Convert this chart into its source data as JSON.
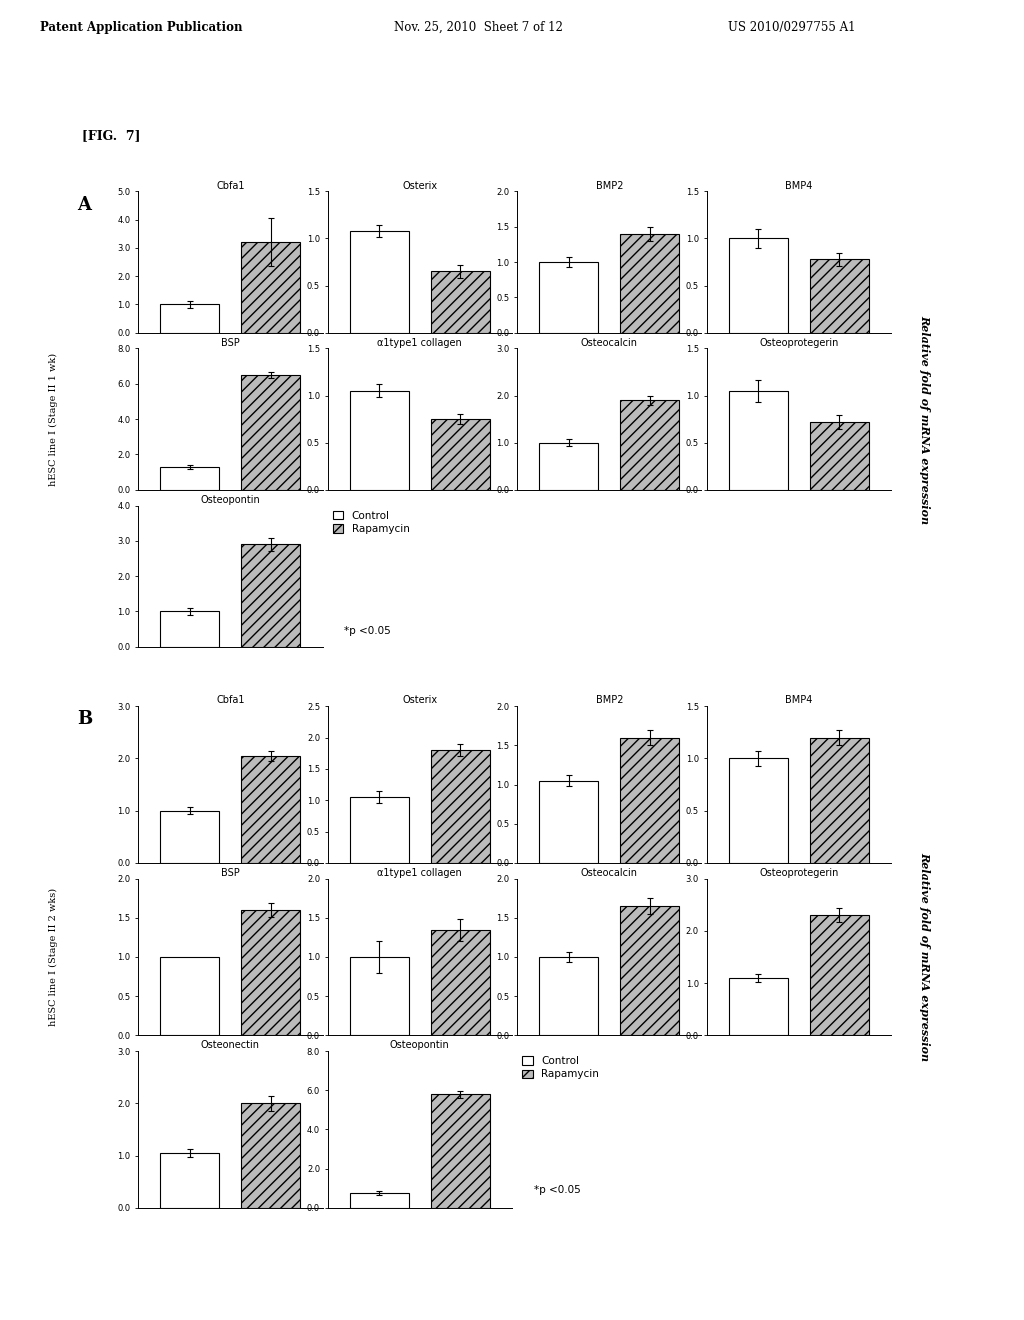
{
  "header_left": "Patent Application Publication",
  "header_mid": "Nov. 25, 2010  Sheet 7 of 12",
  "header_right": "US 2010/0297755 A1",
  "fig_label": "[FIG.  7]",
  "ylabel_A": "hESC line I (Stage II 1 wk)",
  "ylabel_B": "hESC line I (Stage II 2 wks)",
  "right_label": "Relative fold of mRNA expression",
  "legend_control": "Control",
  "legend_rapamycin": "Rapamycin",
  "legend_pval": "*p <0.05",
  "panel_A": {
    "row1": [
      {
        "title": "Cbfa1",
        "ylim": [
          0,
          5.0
        ],
        "yticks": [
          0.0,
          1.0,
          2.0,
          3.0,
          4.0,
          5.0
        ],
        "ctrl": 1.0,
        "ctrl_err": 0.12,
        "rap": 3.2,
        "rap_err": 0.85
      },
      {
        "title": "Osterix",
        "ylim": [
          0,
          1.5
        ],
        "yticks": [
          0.0,
          0.5,
          1.0,
          1.5
        ],
        "ctrl": 1.08,
        "ctrl_err": 0.06,
        "rap": 0.65,
        "rap_err": 0.07
      },
      {
        "title": "BMP2",
        "ylim": [
          0,
          2.0
        ],
        "yticks": [
          0.0,
          0.5,
          1.0,
          1.5,
          2.0
        ],
        "ctrl": 1.0,
        "ctrl_err": 0.07,
        "rap": 1.4,
        "rap_err": 0.1
      },
      {
        "title": "BMP4",
        "ylim": [
          0,
          1.5
        ],
        "yticks": [
          0.0,
          0.5,
          1.0,
          1.5
        ],
        "ctrl": 1.0,
        "ctrl_err": 0.1,
        "rap": 0.78,
        "rap_err": 0.07
      }
    ],
    "row2": [
      {
        "title": "BSP",
        "ylim": [
          0,
          8.0
        ],
        "yticks": [
          0.0,
          2.0,
          4.0,
          6.0,
          8.0
        ],
        "ctrl": 1.3,
        "ctrl_err": 0.12,
        "rap": 6.5,
        "rap_err": 0.18
      },
      {
        "title": "α1type1 collagen",
        "ylim": [
          0,
          1.5
        ],
        "yticks": [
          0.0,
          0.5,
          1.0,
          1.5
        ],
        "ctrl": 1.05,
        "ctrl_err": 0.07,
        "rap": 0.75,
        "rap_err": 0.05
      },
      {
        "title": "Osteocalcin",
        "ylim": [
          0,
          3.0
        ],
        "yticks": [
          0.0,
          1.0,
          2.0,
          3.0
        ],
        "ctrl": 1.0,
        "ctrl_err": 0.07,
        "rap": 1.9,
        "rap_err": 0.1
      },
      {
        "title": "Osteoprotegerin",
        "ylim": [
          0,
          1.5
        ],
        "yticks": [
          0.0,
          0.5,
          1.0,
          1.5
        ],
        "ctrl": 1.05,
        "ctrl_err": 0.12,
        "rap": 0.72,
        "rap_err": 0.07
      }
    ],
    "row3": [
      {
        "title": "Osteopontin",
        "ylim": [
          0,
          4.0
        ],
        "yticks": [
          0.0,
          1.0,
          2.0,
          3.0,
          4.0
        ],
        "ctrl": 1.0,
        "ctrl_err": 0.1,
        "rap": 2.9,
        "rap_err": 0.18
      }
    ]
  },
  "panel_B": {
    "row1": [
      {
        "title": "Cbfa1",
        "ylim": [
          0,
          3.0
        ],
        "yticks": [
          0.0,
          1.0,
          2.0,
          3.0
        ],
        "ctrl": 1.0,
        "ctrl_err": 0.07,
        "rap": 2.05,
        "rap_err": 0.1
      },
      {
        "title": "Osterix",
        "ylim": [
          0,
          2.5
        ],
        "yticks": [
          0.0,
          0.5,
          1.0,
          1.5,
          2.0,
          2.5
        ],
        "ctrl": 1.05,
        "ctrl_err": 0.1,
        "rap": 1.8,
        "rap_err": 0.1
      },
      {
        "title": "BMP2",
        "ylim": [
          0,
          2.0
        ],
        "yticks": [
          0.0,
          0.5,
          1.0,
          1.5,
          2.0
        ],
        "ctrl": 1.05,
        "ctrl_err": 0.07,
        "rap": 1.6,
        "rap_err": 0.09
      },
      {
        "title": "BMP4",
        "ylim": [
          0,
          1.5
        ],
        "yticks": [
          0.0,
          0.5,
          1.0,
          1.5
        ],
        "ctrl": 1.0,
        "ctrl_err": 0.07,
        "rap": 1.2,
        "rap_err": 0.07
      }
    ],
    "row2": [
      {
        "title": "BSP",
        "ylim": [
          0,
          2.0
        ],
        "yticks": [
          0.0,
          0.5,
          1.0,
          1.5,
          2.0
        ],
        "ctrl": 1.0,
        "ctrl_err": 0.0,
        "rap": 1.6,
        "rap_err": 0.09
      },
      {
        "title": "α1type1 collagen",
        "ylim": [
          0,
          2.0
        ],
        "yticks": [
          0.0,
          0.5,
          1.0,
          1.5,
          2.0
        ],
        "ctrl": 1.0,
        "ctrl_err": 0.2,
        "rap": 1.35,
        "rap_err": 0.14
      },
      {
        "title": "Osteocalcin",
        "ylim": [
          0,
          2.0
        ],
        "yticks": [
          0.0,
          0.5,
          1.0,
          1.5,
          2.0
        ],
        "ctrl": 1.0,
        "ctrl_err": 0.07,
        "rap": 1.65,
        "rap_err": 0.1
      },
      {
        "title": "Osteoprotegerin",
        "ylim": [
          0,
          3.0
        ],
        "yticks": [
          0.0,
          1.0,
          2.0,
          3.0
        ],
        "ctrl": 1.1,
        "ctrl_err": 0.07,
        "rap": 2.3,
        "rap_err": 0.13
      }
    ],
    "row3": [
      {
        "title": "Osteonectin",
        "ylim": [
          0,
          3.0
        ],
        "yticks": [
          0.0,
          1.0,
          2.0,
          3.0
        ],
        "ctrl": 1.05,
        "ctrl_err": 0.07,
        "rap": 2.0,
        "rap_err": 0.14
      },
      {
        "title": "Osteopontin",
        "ylim": [
          0,
          8.0
        ],
        "yticks": [
          0.0,
          2.0,
          4.0,
          6.0,
          8.0
        ],
        "ctrl": 0.75,
        "ctrl_err": 0.1,
        "rap": 5.8,
        "rap_err": 0.18
      }
    ]
  },
  "ctrl_color": "white",
  "rap_hatch": "///",
  "rap_facecolor": "#bbbbbb",
  "bar_edge": "black",
  "bar_width": 0.32
}
